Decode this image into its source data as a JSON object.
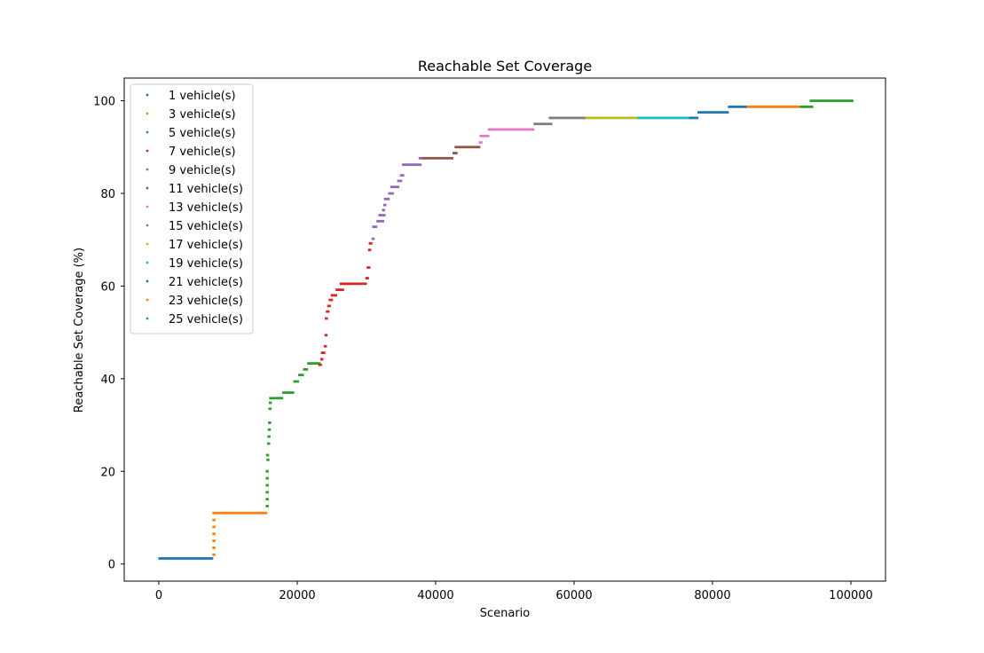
{
  "chart_data": {
    "type": "scatter",
    "title": "Reachable Set Coverage",
    "xlabel": "Scenario",
    "ylabel": "Reachable Set Coverage (%)",
    "xlim": [
      -5000,
      105000
    ],
    "ylim": [
      -3.7,
      104.9
    ],
    "xticks": [
      0,
      20000,
      40000,
      60000,
      80000,
      100000
    ],
    "xtick_labels": [
      "0",
      "20000",
      "40000",
      "60000",
      "80000",
      "100000"
    ],
    "yticks": [
      0,
      20,
      40,
      60,
      80,
      100
    ],
    "ytick_labels": [
      "0",
      "20",
      "40",
      "60",
      "80",
      "100"
    ],
    "legend_position": "top-left",
    "series": [
      {
        "name": "1 vehicle(s)",
        "color": "#1f77b4",
        "segments": [
          [
            0,
            7800,
            1.2
          ]
        ]
      },
      {
        "name": "3 vehicle(s)",
        "color": "#ff7f0e",
        "segments": [
          [
            7800,
            7800,
            2.0
          ],
          [
            7800,
            7800,
            3.5
          ],
          [
            7800,
            7800,
            5.0
          ],
          [
            7800,
            7800,
            6.5
          ],
          [
            7800,
            7800,
            8.0
          ],
          [
            7800,
            7800,
            9.5
          ],
          [
            7800,
            15600,
            11.0
          ]
        ]
      },
      {
        "name": "5 vehicle(s)",
        "color": "#2ca02c",
        "segments": [
          [
            15500,
            15500,
            12.5
          ],
          [
            15500,
            15500,
            14.0
          ],
          [
            15500,
            15500,
            15.5
          ],
          [
            15500,
            15500,
            17.0
          ],
          [
            15500,
            15500,
            18.5
          ],
          [
            15500,
            15500,
            20.0
          ],
          [
            15550,
            15650,
            23.5
          ],
          [
            15600,
            15600,
            22.5
          ],
          [
            15700,
            15700,
            26.0
          ],
          [
            15750,
            15750,
            27.5
          ],
          [
            15800,
            15800,
            29.0
          ],
          [
            15850,
            15850,
            30.5
          ],
          [
            15900,
            15900,
            33.5
          ],
          [
            15950,
            15950,
            34.8
          ],
          [
            16000,
            17900,
            35.8
          ],
          [
            17900,
            19500,
            37.0
          ],
          [
            19500,
            20200,
            39.4
          ],
          [
            20200,
            20900,
            40.8
          ],
          [
            20900,
            21500,
            42.0
          ],
          [
            21500,
            23300,
            43.3
          ]
        ]
      },
      {
        "name": "7 vehicle(s)",
        "color": "#d62728",
        "segments": [
          [
            23100,
            23500,
            43.0
          ],
          [
            23400,
            23500,
            44.2
          ],
          [
            23500,
            24000,
            45.6
          ],
          [
            23900,
            24100,
            47.0
          ],
          [
            24000,
            24200,
            49.4
          ],
          [
            24050,
            24350,
            53.0
          ],
          [
            24200,
            24600,
            54.5
          ],
          [
            24400,
            24800,
            55.7
          ],
          [
            24600,
            25100,
            57.0
          ],
          [
            24900,
            25700,
            58.0
          ],
          [
            25600,
            26700,
            59.2
          ],
          [
            26200,
            30000,
            60.5
          ],
          [
            29900,
            30300,
            61.7
          ],
          [
            30100,
            30500,
            64.0
          ],
          [
            30300,
            30500,
            67.8
          ],
          [
            30400,
            30800,
            69.2
          ]
        ]
      },
      {
        "name": "9 vehicle(s)",
        "color": "#9467bd",
        "segments": [
          [
            30800,
            31000,
            70.2
          ],
          [
            30900,
            31500,
            72.8
          ],
          [
            31500,
            32500,
            74.0
          ],
          [
            31800,
            32700,
            75.3
          ],
          [
            32300,
            32600,
            76.4
          ],
          [
            32500,
            32800,
            77.5
          ],
          [
            32600,
            33300,
            78.8
          ],
          [
            33200,
            33900,
            80.0
          ],
          [
            33500,
            34700,
            81.4
          ],
          [
            34500,
            35100,
            82.7
          ],
          [
            34900,
            35400,
            83.9
          ],
          [
            35200,
            37900,
            86.2
          ],
          [
            37600,
            38200,
            87.6
          ]
        ]
      },
      {
        "name": "11 vehicle(s)",
        "color": "#8c564b",
        "segments": [
          [
            38100,
            42500,
            87.6
          ],
          [
            42500,
            43100,
            88.7
          ],
          [
            42800,
            46400,
            90.0
          ]
        ]
      },
      {
        "name": "13 vehicle(s)",
        "color": "#e377c2",
        "segments": [
          [
            46300,
            46700,
            91.0
          ],
          [
            46400,
            47700,
            92.4
          ],
          [
            47600,
            54200,
            93.8
          ]
        ]
      },
      {
        "name": "15 vehicle(s)",
        "color": "#7f7f7f",
        "segments": [
          [
            54200,
            56800,
            95.0
          ],
          [
            56400,
            61700,
            96.3
          ]
        ]
      },
      {
        "name": "17 vehicle(s)",
        "color": "#bcbd22",
        "segments": [
          [
            61700,
            69200,
            96.3
          ]
        ]
      },
      {
        "name": "19 vehicle(s)",
        "color": "#17becf",
        "segments": [
          [
            69200,
            76700,
            96.3
          ]
        ]
      },
      {
        "name": "21 vehicle(s)",
        "color": "#1f77b4",
        "segments": [
          [
            76700,
            77900,
            96.3
          ],
          [
            77900,
            82300,
            97.5
          ],
          [
            82300,
            85000,
            98.7
          ]
        ]
      },
      {
        "name": "23 vehicle(s)",
        "color": "#ff7f0e",
        "segments": [
          [
            85000,
            92700,
            98.7
          ]
        ]
      },
      {
        "name": "25 vehicle(s)",
        "color": "#2ca02c",
        "segments": [
          [
            92700,
            94500,
            98.7
          ],
          [
            94100,
            100300,
            100.0
          ]
        ]
      }
    ]
  }
}
